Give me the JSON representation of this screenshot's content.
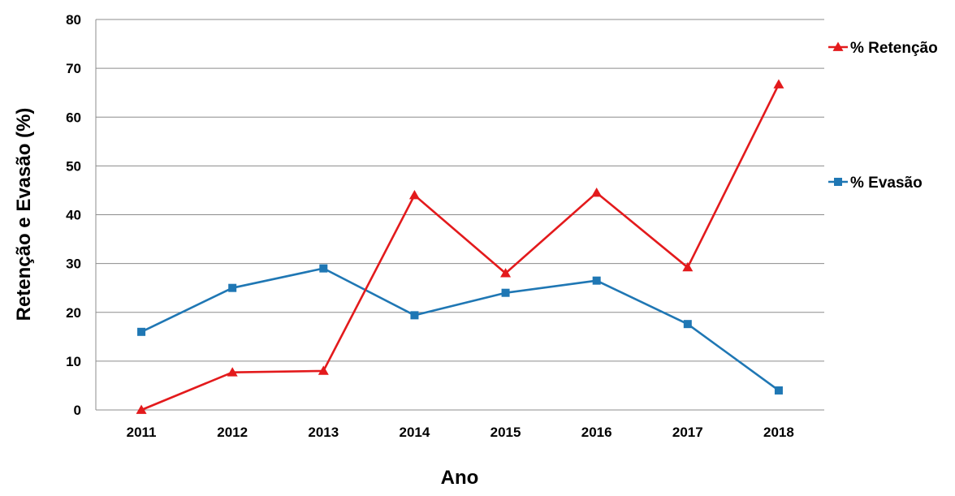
{
  "chart_data": {
    "type": "line",
    "title": "",
    "xlabel": "Ano",
    "ylabel": "Retenção e Evasão (%)",
    "ylim": [
      0,
      80
    ],
    "yticks": [
      "0",
      "10",
      "20",
      "30",
      "40",
      "50",
      "60",
      "70",
      "80"
    ],
    "categories": [
      "2011",
      "2012",
      "2013",
      "2014",
      "2015",
      "2016",
      "2017",
      "2018"
    ],
    "grid": true,
    "legend_position": "right",
    "series": [
      {
        "name": "% Retenção",
        "color": "#e31a1c",
        "marker": "triangle",
        "values": [
          0,
          7.7,
          8,
          44,
          28,
          44.5,
          29.2,
          66.7
        ]
      },
      {
        "name": "% Evasão",
        "color": "#1f77b4",
        "marker": "square",
        "values": [
          16,
          25,
          29,
          19.4,
          24,
          26.5,
          17.6,
          4
        ]
      }
    ]
  }
}
